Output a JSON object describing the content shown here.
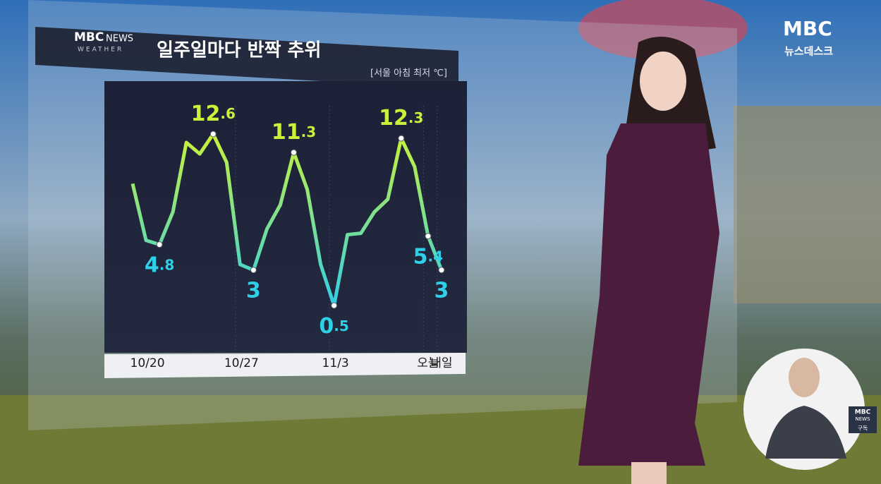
{
  "broadcast": {
    "logo_top": "MBC",
    "logo_bottom": "NEWS",
    "logo_sub": "WEATHER",
    "channel": "MBC",
    "program": "뉴스데스크",
    "sign_logo_top": "MBC",
    "sign_logo_bottom": "NEWS",
    "sign_subscribe": "구독"
  },
  "chart_data": {
    "type": "line",
    "title": "일주일마다 반짝 추위",
    "subtitle": "[서울 아침 최저 ℃]",
    "categories": [
      null,
      "10/20",
      null,
      null,
      null,
      null,
      null,
      null,
      "10/27",
      null,
      null,
      null,
      null,
      null,
      null,
      "11/3",
      null,
      null,
      null,
      null,
      null,
      null,
      "오늘",
      "내일"
    ],
    "values": [
      9.1,
      5.1,
      4.8,
      7.1,
      12.0,
      11.2,
      12.6,
      10.6,
      3.4,
      3,
      5.9,
      7.6,
      11.3,
      8.7,
      3.4,
      0.5,
      5.5,
      5.6,
      7.1,
      8.0,
      12.3,
      10.3,
      5.4,
      3
    ],
    "labels_at": [
      2,
      6,
      9,
      12,
      15,
      20,
      22,
      23
    ],
    "colors": {
      "high": "#c9f23a",
      "low": "#30cfe8"
    }
  }
}
